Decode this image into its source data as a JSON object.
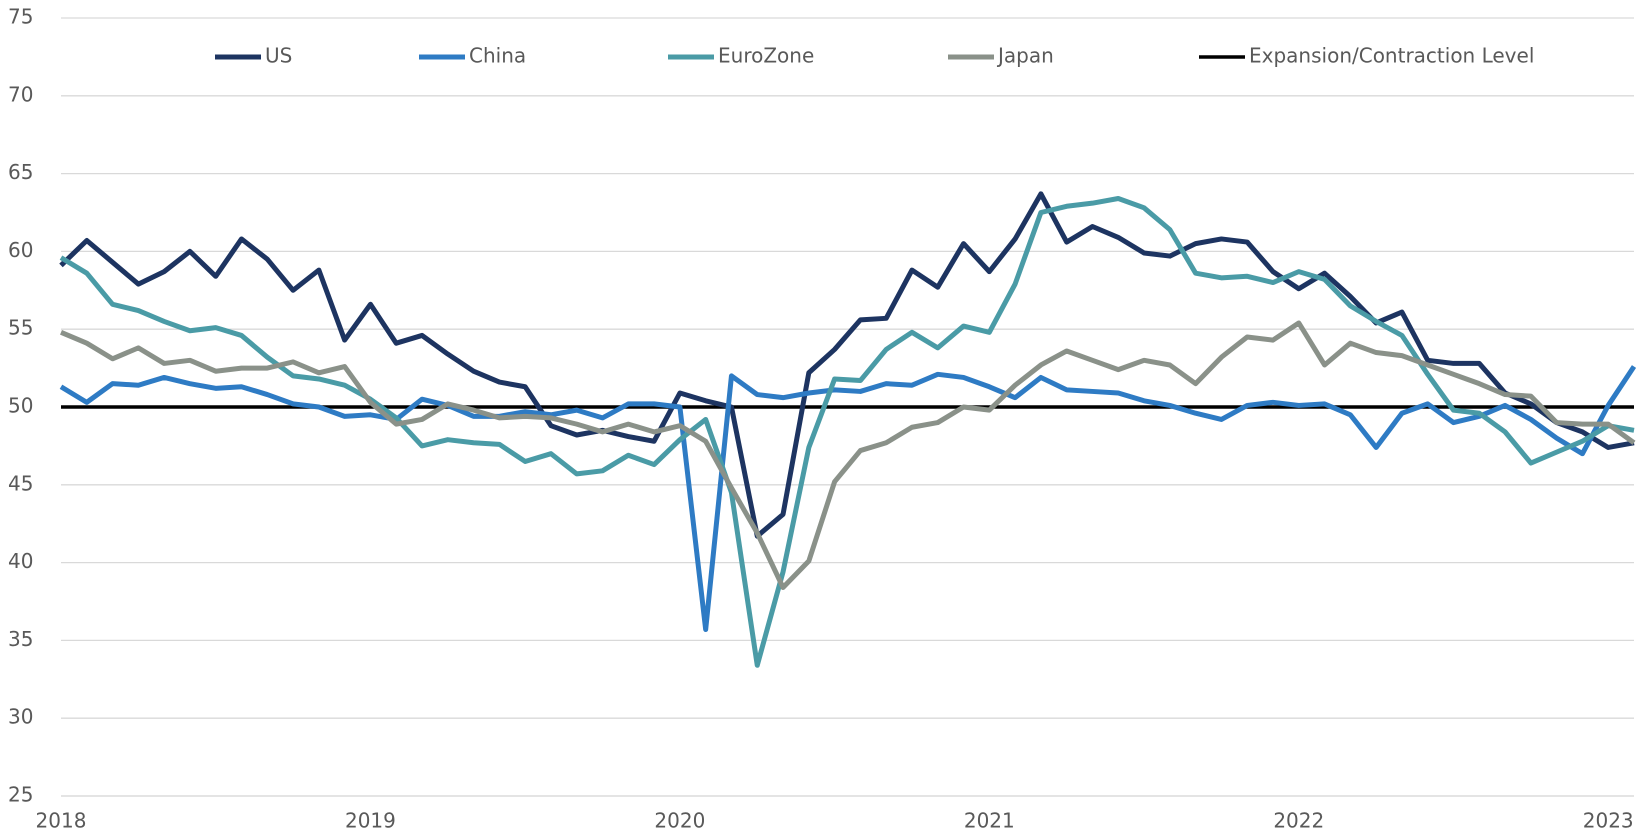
{
  "chart_data": {
    "type": "line",
    "categories": [
      "2018",
      null,
      null,
      null,
      null,
      null,
      null,
      null,
      null,
      null,
      null,
      null,
      "2019",
      null,
      null,
      null,
      null,
      null,
      null,
      null,
      null,
      null,
      null,
      null,
      "2020",
      null,
      null,
      null,
      null,
      null,
      null,
      null,
      null,
      null,
      null,
      null,
      "2021",
      null,
      null,
      null,
      null,
      null,
      null,
      null,
      null,
      null,
      null,
      null,
      "2022",
      null,
      null,
      null,
      null,
      null,
      null,
      null,
      null,
      null,
      null,
      null,
      "2023",
      null
    ],
    "ylim": [
      25,
      75
    ],
    "yticks": [
      25,
      30,
      35,
      40,
      45,
      50,
      55,
      60,
      65,
      70,
      75
    ],
    "grid": true,
    "legend": "top",
    "series": [
      {
        "name": "US",
        "color": "#1d3461",
        "values": [
          59.1,
          60.7,
          59.3,
          57.9,
          58.7,
          60.0,
          58.4,
          60.8,
          59.5,
          57.5,
          58.8,
          54.3,
          56.6,
          54.1,
          54.6,
          53.4,
          52.3,
          51.6,
          51.3,
          48.8,
          48.2,
          48.5,
          48.1,
          47.8,
          50.9,
          50.4,
          50.0,
          41.7,
          43.1,
          52.2,
          53.7,
          55.6,
          55.7,
          58.8,
          57.7,
          60.5,
          58.7,
          60.8,
          63.7,
          60.6,
          61.6,
          60.9,
          59.9,
          59.7,
          60.5,
          60.8,
          60.6,
          58.7,
          57.6,
          58.6,
          57.1,
          55.4,
          56.1,
          53.0,
          52.8,
          52.8,
          50.9,
          50.2,
          49.0,
          48.4,
          47.4,
          47.7
        ]
      },
      {
        "name": "China",
        "color": "#2e7bc4",
        "values": [
          51.3,
          50.3,
          51.5,
          51.4,
          51.9,
          51.5,
          51.2,
          51.3,
          50.8,
          50.2,
          50.0,
          49.4,
          49.5,
          49.2,
          50.5,
          50.1,
          49.4,
          49.4,
          49.7,
          49.5,
          49.8,
          49.3,
          50.2,
          50.2,
          50.0,
          35.7,
          52.0,
          50.8,
          50.6,
          50.9,
          51.1,
          51.0,
          51.5,
          51.4,
          52.1,
          51.9,
          51.3,
          50.6,
          51.9,
          51.1,
          51.0,
          50.9,
          50.4,
          50.1,
          49.6,
          49.2,
          50.1,
          50.3,
          50.1,
          50.2,
          49.5,
          47.4,
          49.6,
          50.2,
          49.0,
          49.4,
          50.1,
          49.2,
          48.0,
          47.0,
          50.1,
          52.6
        ]
      },
      {
        "name": "EuroZone",
        "color": "#4a9ba6",
        "values": [
          59.6,
          58.6,
          56.6,
          56.2,
          55.5,
          54.9,
          55.1,
          54.6,
          53.2,
          52.0,
          51.8,
          51.4,
          50.5,
          49.3,
          47.5,
          47.9,
          47.7,
          47.6,
          46.5,
          47.0,
          45.7,
          45.9,
          46.9,
          46.3,
          47.9,
          49.2,
          44.5,
          33.4,
          39.4,
          47.4,
          51.8,
          51.7,
          53.7,
          54.8,
          53.8,
          55.2,
          54.8,
          57.9,
          62.5,
          62.9,
          63.1,
          63.4,
          62.8,
          61.4,
          58.6,
          58.3,
          58.4,
          58.0,
          58.7,
          58.2,
          56.5,
          55.5,
          54.6,
          52.1,
          49.8,
          49.6,
          48.4,
          46.4,
          47.1,
          47.8,
          48.8,
          48.5
        ]
      },
      {
        "name": "Japan",
        "color": "#8a9189",
        "values": [
          54.8,
          54.1,
          53.1,
          53.8,
          52.8,
          53.0,
          52.3,
          52.5,
          52.5,
          52.9,
          52.2,
          52.6,
          50.3,
          48.9,
          49.2,
          50.2,
          49.8,
          49.3,
          49.4,
          49.3,
          48.9,
          48.4,
          48.9,
          48.4,
          48.8,
          47.8,
          44.8,
          41.9,
          38.4,
          40.1,
          45.2,
          47.2,
          47.7,
          48.7,
          49.0,
          50.0,
          49.8,
          51.4,
          52.7,
          53.6,
          53.0,
          52.4,
          53.0,
          52.7,
          51.5,
          53.2,
          54.5,
          54.3,
          55.4,
          52.7,
          54.1,
          53.5,
          53.3,
          52.7,
          52.1,
          51.5,
          50.8,
          50.7,
          49.0,
          48.9,
          48.9,
          47.7
        ]
      }
    ],
    "reference_line": {
      "name": "Expansion/Contraction Level",
      "value": 50,
      "color": "#000000"
    }
  }
}
